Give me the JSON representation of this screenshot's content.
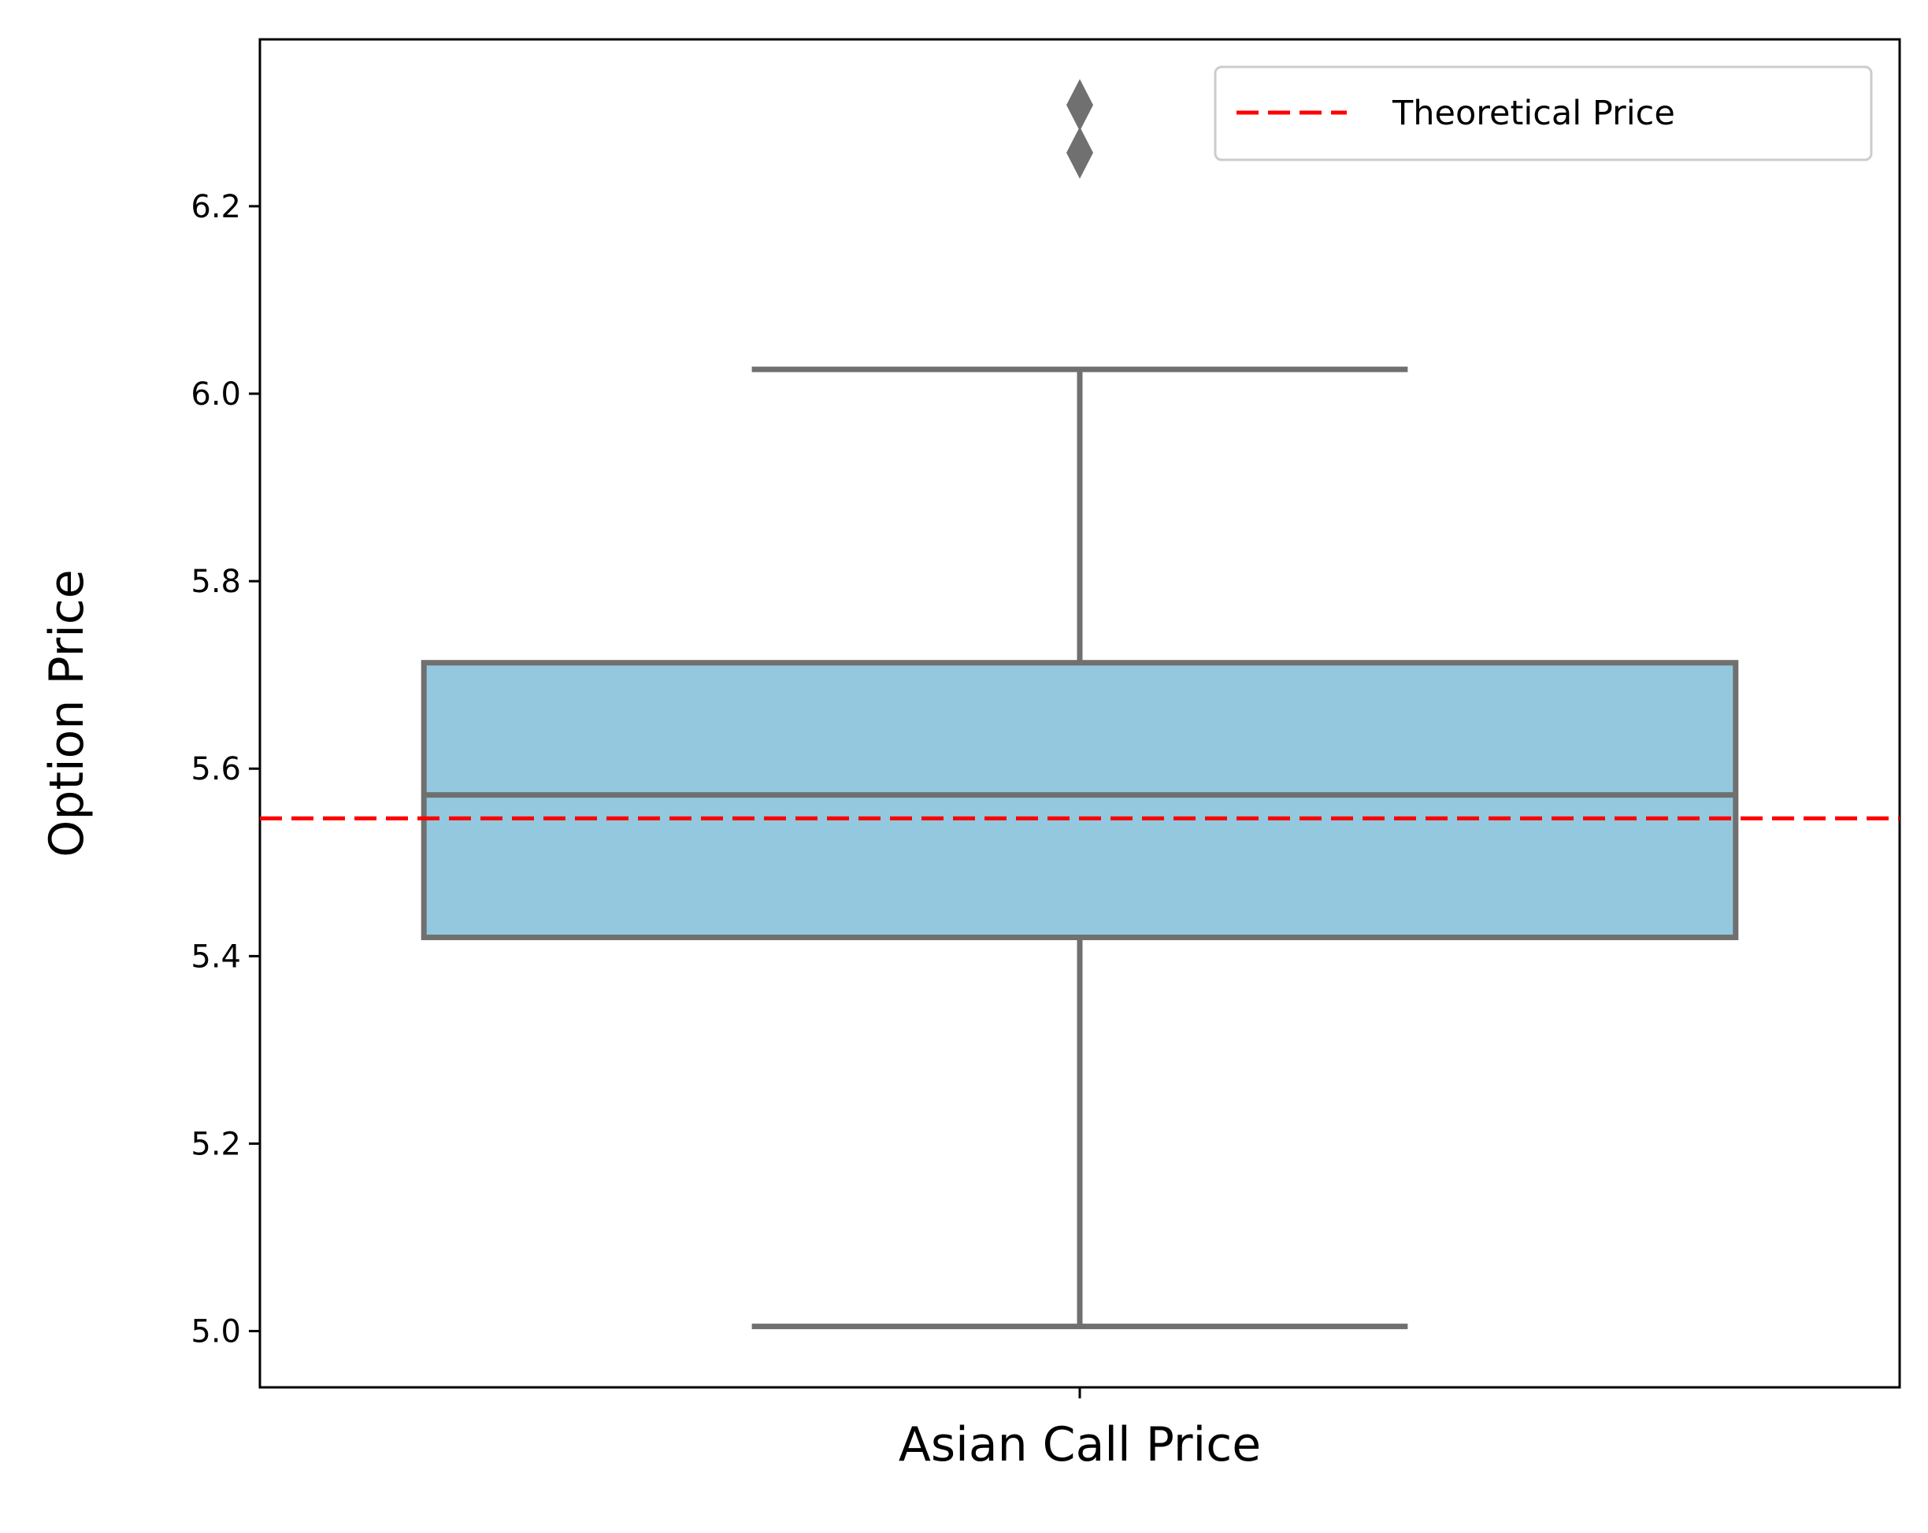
{
  "chart_data": {
    "type": "box",
    "xlabel": "",
    "ylabel": "Option Price",
    "ylim": [
      4.94,
      6.378
    ],
    "yticks": [
      5.0,
      5.2,
      5.4,
      5.6,
      5.8,
      6.0,
      6.2
    ],
    "ytick_labels": [
      "5.0",
      "5.2",
      "5.4",
      "5.6",
      "5.8",
      "6.0",
      "6.2"
    ],
    "categories": [
      "Asian Call Price"
    ],
    "boxes": [
      {
        "category": "Asian Call Price",
        "whisker_low": 5.005,
        "q1": 5.42,
        "median": 5.572,
        "q3": 5.713,
        "whisker_high": 6.026,
        "outliers": [
          6.308,
          6.257
        ]
      }
    ],
    "reference_line": {
      "name": "Theoretical Price",
      "value": 5.547,
      "style": "dashed"
    },
    "legend": {
      "position": "top-right",
      "entries": [
        "Theoretical Price"
      ]
    },
    "grid": false,
    "colors": {
      "box_fill": "#93c8de",
      "box_edge": "#707070",
      "reference": "#ff0000"
    }
  }
}
